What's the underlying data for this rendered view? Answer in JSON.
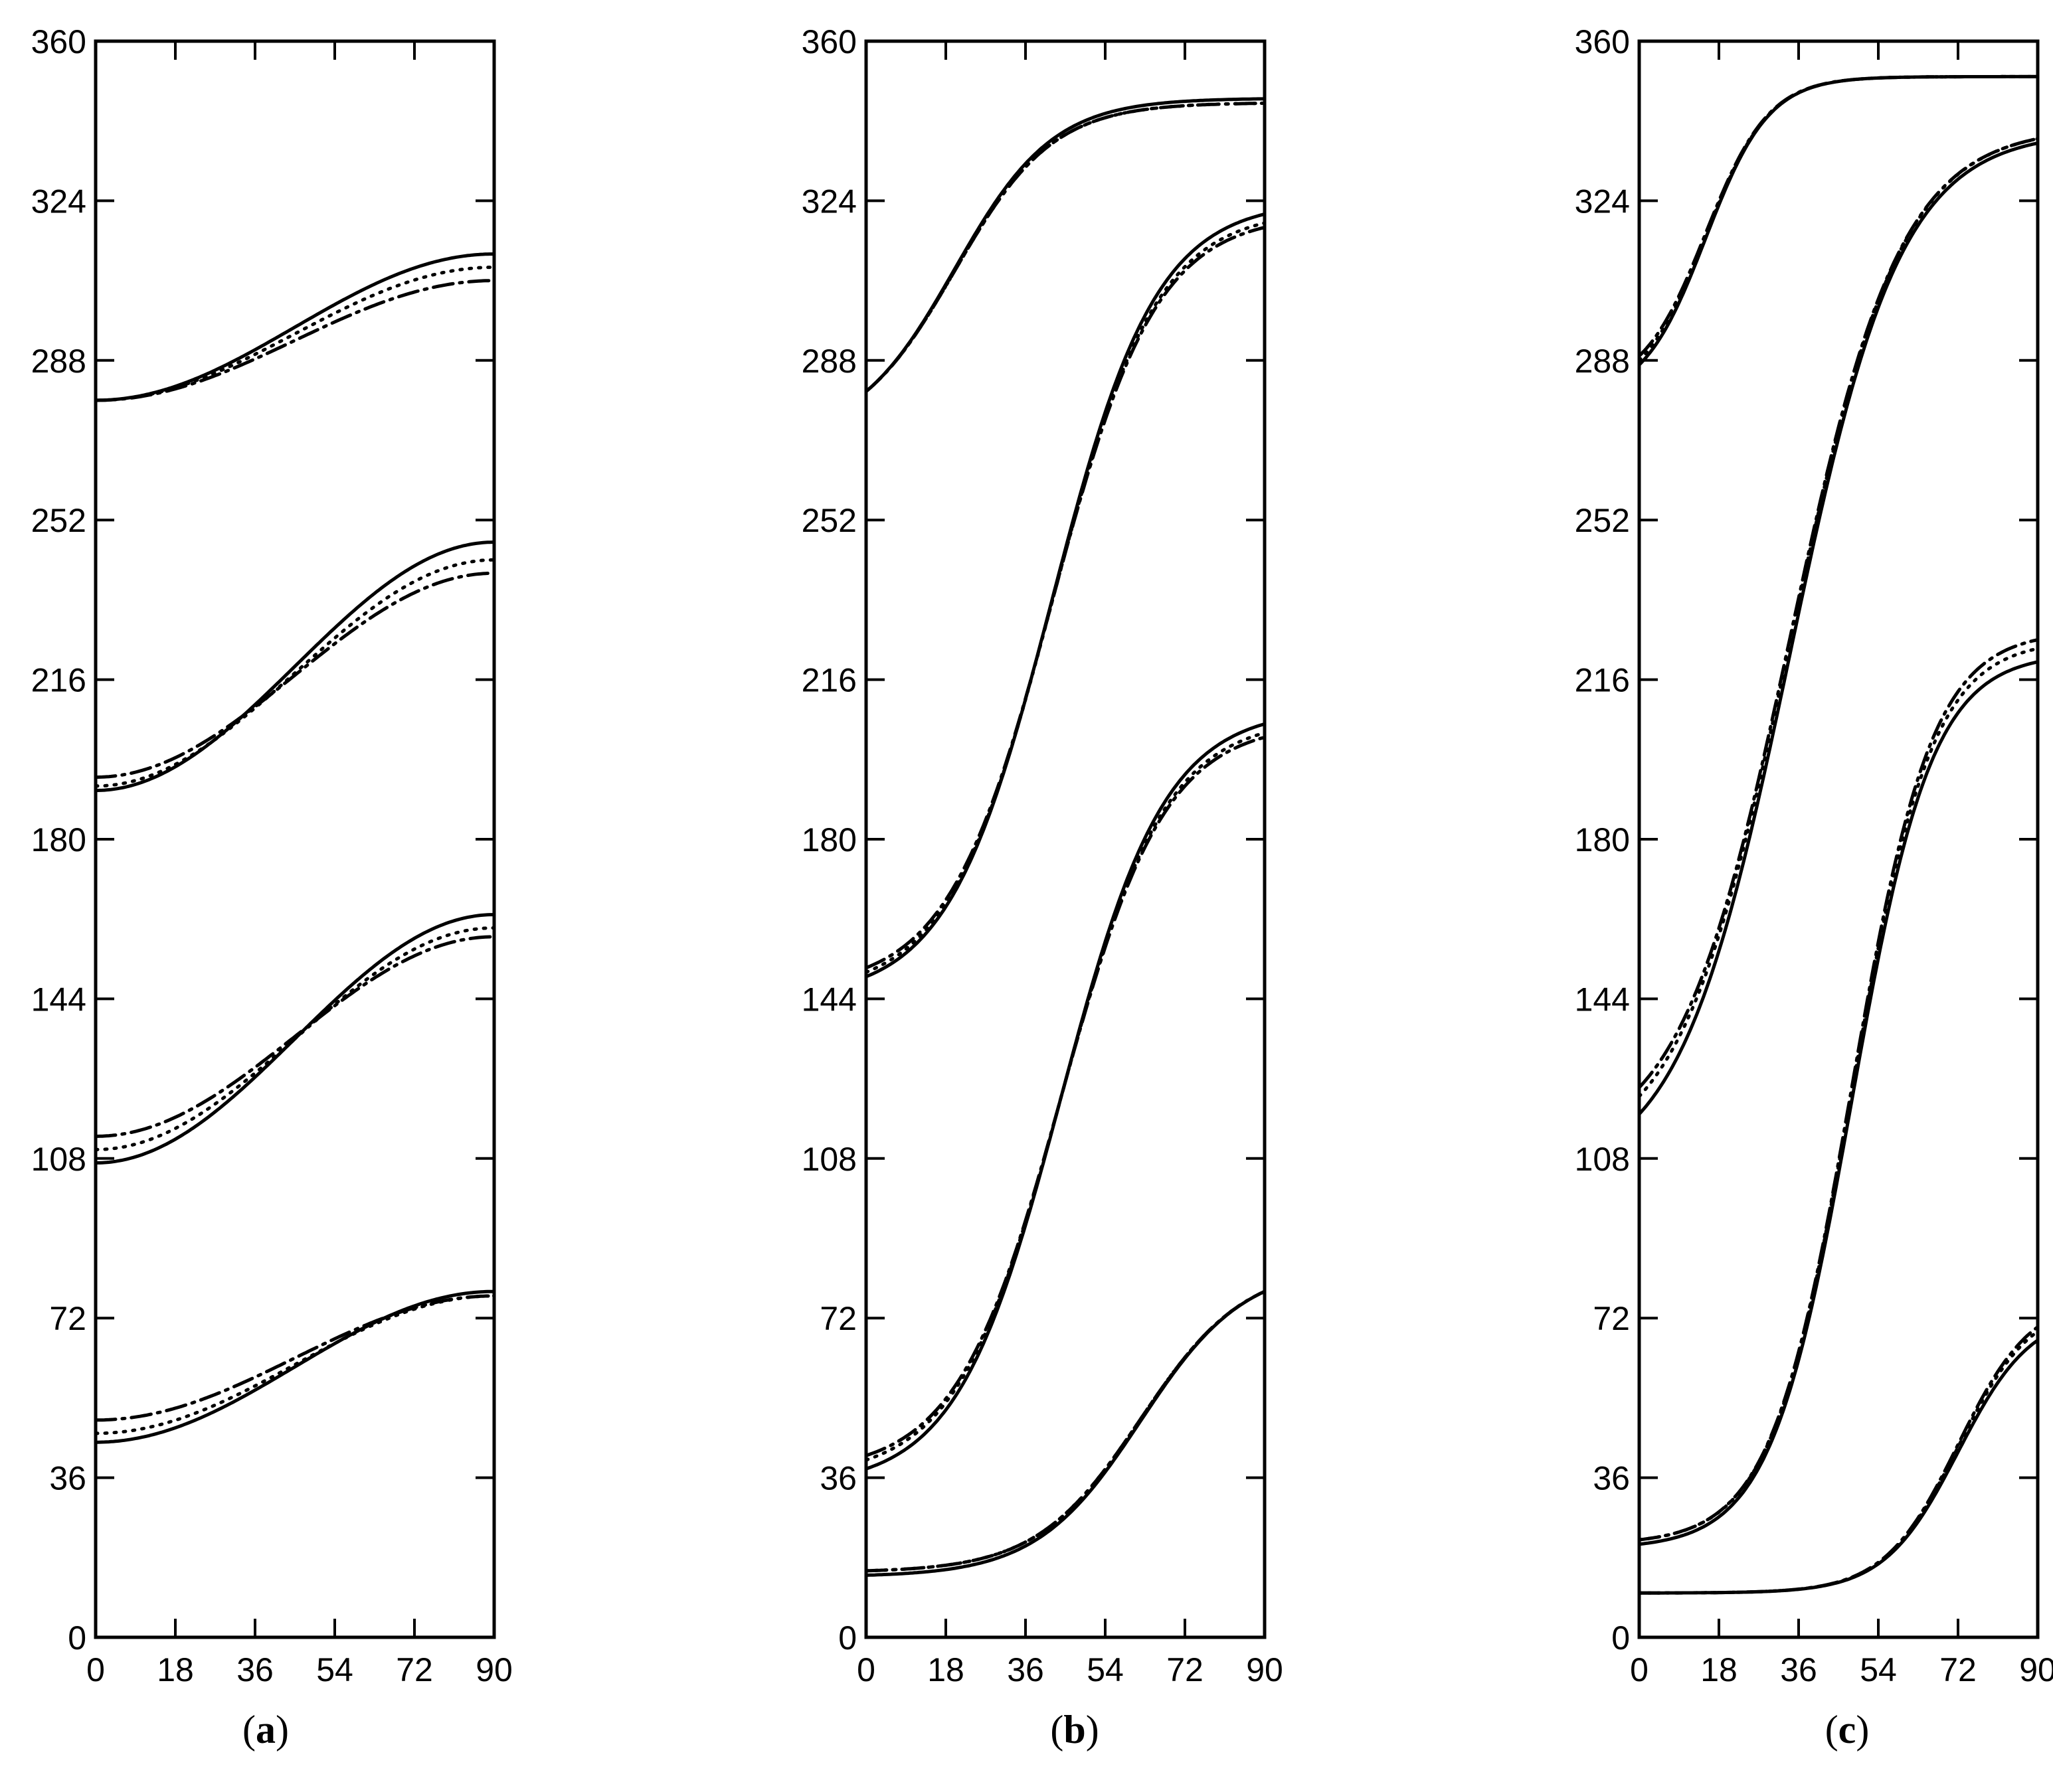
{
  "chart_data": [
    {
      "type": "line",
      "caption": {
        "open": "(",
        "letter": "a",
        "close": ")"
      },
      "xlim": [
        0,
        90
      ],
      "ylim": [
        0,
        360
      ],
      "xticks": [
        0,
        18,
        36,
        54,
        72,
        90
      ],
      "yticks": [
        0,
        36,
        72,
        108,
        144,
        180,
        216,
        252,
        288,
        324,
        360
      ],
      "grid": false,
      "curve_groups": [
        {
          "solid": {
            "y0": 44,
            "y1": 78
          },
          "dotted": {
            "y0": 46,
            "y1": 77
          },
          "dashdot": {
            "y0": 49,
            "y1": 77
          }
        },
        {
          "solid": {
            "y0": 107,
            "y1": 163
          },
          "dotted": {
            "y0": 110,
            "y1": 160
          },
          "dashdot": {
            "y0": 113,
            "y1": 158
          }
        },
        {
          "solid": {
            "y0": 191,
            "y1": 247
          },
          "dotted": {
            "y0": 192,
            "y1": 243
          },
          "dashdot": {
            "y0": 194,
            "y1": 240
          }
        },
        {
          "solid": {
            "y0": 279,
            "y1": 312
          },
          "dotted": {
            "y0": 279,
            "y1": 309
          },
          "dashdot": {
            "y0": 279,
            "y1": 306
          }
        }
      ]
    },
    {
      "type": "line",
      "caption": {
        "open": "(",
        "letter": "b",
        "close": ")"
      },
      "xlim": [
        0,
        90
      ],
      "ylim": [
        0,
        360
      ],
      "xticks": [
        0,
        18,
        36,
        54,
        72,
        90
      ],
      "yticks": [
        0,
        36,
        72,
        108,
        144,
        180,
        216,
        252,
        288,
        324,
        360
      ],
      "grid": false,
      "curve_groups": [
        {
          "solid": {
            "y0": 14,
            "y1": 78
          },
          "dotted": {
            "y0": 15,
            "y1": 78
          },
          "dashdot": {
            "y0": 15,
            "y1": 78
          }
        },
        {
          "solid": {
            "y0": 38,
            "y1": 206
          },
          "dotted": {
            "y0": 40,
            "y1": 204
          },
          "dashdot": {
            "y0": 41,
            "y1": 203
          }
        },
        {
          "solid": {
            "y0": 149,
            "y1": 321
          },
          "dotted": {
            "y0": 150,
            "y1": 319
          },
          "dashdot": {
            "y0": 151,
            "y1": 318
          }
        },
        {
          "solid": {
            "y0": 281,
            "y1": 347
          },
          "dotted": {
            "y0": 281,
            "y1": 346
          },
          "dashdot": {
            "y0": 281,
            "y1": 346
          }
        }
      ]
    },
    {
      "type": "line",
      "caption": {
        "open": "(",
        "letter": "c",
        "close": ")"
      },
      "xlim": [
        0,
        90
      ],
      "ylim": [
        0,
        360
      ],
      "xticks": [
        0,
        18,
        36,
        54,
        72,
        90
      ],
      "yticks": [
        0,
        36,
        72,
        108,
        144,
        180,
        216,
        252,
        288,
        324,
        360
      ],
      "grid": false,
      "curve_groups": [
        {
          "solid": {
            "y0": 10,
            "y1": 67
          },
          "dotted": {
            "y0": 10,
            "y1": 69
          },
          "dashdot": {
            "y0": 10,
            "y1": 70
          }
        },
        {
          "solid": {
            "y0": 21,
            "y1": 220
          },
          "dotted": {
            "y0": 22,
            "y1": 223
          },
          "dashdot": {
            "y0": 22,
            "y1": 225
          }
        },
        {
          "solid": {
            "y0": 118,
            "y1": 337
          },
          "dotted": {
            "y0": 122,
            "y1": 338
          },
          "dashdot": {
            "y0": 124,
            "y1": 338
          }
        },
        {
          "solid": {
            "y0": 287,
            "y1": 352
          },
          "dotted": {
            "y0": 288,
            "y1": 352
          },
          "dashdot": {
            "y0": 289,
            "y1": 352
          }
        }
      ]
    }
  ]
}
